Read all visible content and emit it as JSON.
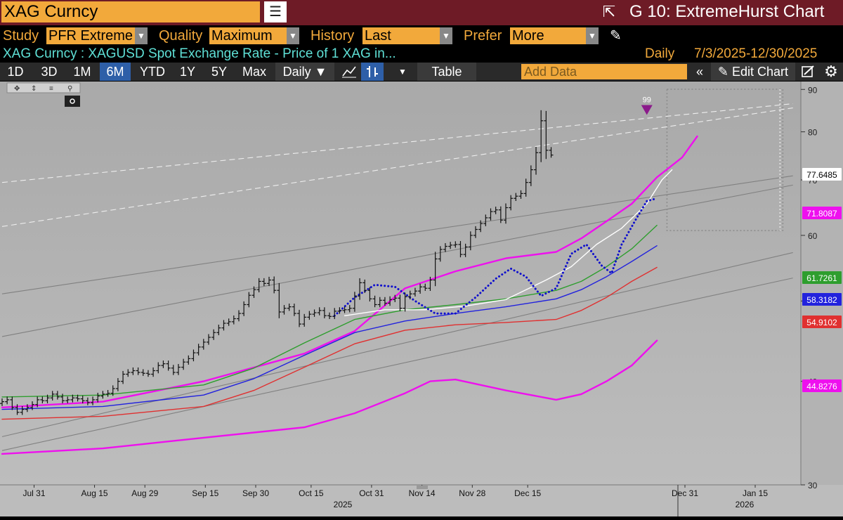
{
  "header": {
    "security": "XAG Curncy",
    "title": "G 10: ExtremeHurst Chart"
  },
  "controls": {
    "study_label": "Study",
    "study_value": "PFR Extreme",
    "quality_label": "Quality",
    "quality_value": "Maximum",
    "history_label": "History",
    "history_value": "Last",
    "prefer_label": "Prefer",
    "prefer_value": "More"
  },
  "info": {
    "description": "XAG Curncy : XAGUSD Spot Exchange Rate - Price of 1 XAG in...",
    "frequency": "Daily",
    "date_range": "7/3/2025-12/30/2025"
  },
  "toolbar": {
    "periods": [
      "1D",
      "3D",
      "1M",
      "6M",
      "YTD",
      "1Y",
      "5Y",
      "Max"
    ],
    "active_period": "6M",
    "daily_label": "Daily ▼",
    "table_label": "Table",
    "add_data_placeholder": "Add Data",
    "edit_chart_label": "Edit Chart"
  },
  "icons": {
    "menu": "menu-icon",
    "popout": "popout-icon",
    "pencil": "pencil-icon",
    "line_chart": "line-chart-icon",
    "bar_chart": "ohlc-bar-icon",
    "collapse": "double-chevron-left-icon",
    "settings": "gear-icon"
  },
  "colors": {
    "header_bg": "#6e1b26",
    "accent": "#f2a93b",
    "chart_bg": "#b3b3b3",
    "magenta": "#ee10ee",
    "green": "#2e9e2e",
    "blue": "#2222dd",
    "red": "#e03030",
    "white_line": "#ffffff",
    "dotted_blue": "#1010cc"
  },
  "chart_data": {
    "type": "ohlc",
    "scale": "log",
    "ylim": [
      30,
      92
    ],
    "y_ticks": [
      30,
      40,
      50,
      60,
      70,
      80,
      90
    ],
    "x_tick_labels": [
      "Jul 31",
      "Aug 15",
      "Aug 29",
      "Sep 15",
      "Sep 30",
      "Oct 15",
      "Oct 31",
      "Nov 14",
      "Nov 28",
      "Dec 15",
      "Dec 31",
      "Jan 15"
    ],
    "year_labels": [
      "2025",
      "2026"
    ],
    "marker": {
      "label": "99",
      "date": "Dec 29",
      "value": 84.5
    },
    "price_labels": [
      {
        "value": "77.6485",
        "color": "#ffffff"
      },
      {
        "value": "71.8087",
        "color": "#ee10ee"
      },
      {
        "value": "61.7261",
        "color": "#2e9e2e"
      },
      {
        "value": "58.3182",
        "color": "#2222dd"
      },
      {
        "value": "54.9102",
        "color": "#e03030"
      },
      {
        "value": "44.8276",
        "color": "#ee10ee"
      }
    ],
    "price_close": [
      37.8,
      38.0,
      37.2,
      36.7,
      37.0,
      37.2,
      37.5,
      38.0,
      37.9,
      38.2,
      38.6,
      38.3,
      37.9,
      38.0,
      38.2,
      38.1,
      37.9,
      37.7,
      38.0,
      38.4,
      38.6,
      38.7,
      39.2,
      40.0,
      40.8,
      41.0,
      41.2,
      41.0,
      40.9,
      40.8,
      41.2,
      41.8,
      42.0,
      41.5,
      41.0,
      41.6,
      42.2,
      42.6,
      43.3,
      44.0,
      44.6,
      45.2,
      45.8,
      46.4,
      47.0,
      47.2,
      47.6,
      48.3,
      49.5,
      50.8,
      51.6,
      52.8,
      52.5,
      53.0,
      51.5,
      48.5,
      49.0,
      49.2,
      48.3,
      46.9,
      47.8,
      48.2,
      48.4,
      48.7,
      48.0,
      47.9,
      48.6,
      48.7,
      48.8,
      49.0,
      50.7,
      52.6,
      51.5,
      50.3,
      49.5,
      50.1,
      49.7,
      50.2,
      50.4,
      49.0,
      50.6,
      51.0,
      51.4,
      52.0,
      51.8,
      53.0,
      56.2,
      57.7,
      58.2,
      58.4,
      58.5,
      56.9,
      58.1,
      60.0,
      61.0,
      62.0,
      63.0,
      64.1,
      64.4,
      62.6,
      64.8,
      66.5,
      66.9,
      67.4,
      69.5,
      72.0,
      75.5,
      82.5,
      76.0,
      75.0
    ],
    "ohlc_from_close": true,
    "series": [
      {
        "name": "",
        "color": "#ee10ee",
        "style": "solid",
        "points": [
          [
            0,
            37.2
          ],
          [
            20,
            37.8
          ],
          [
            40,
            40.0
          ],
          [
            60,
            43.2
          ],
          [
            70,
            46.0
          ],
          [
            80,
            51.8
          ],
          [
            90,
            54.3
          ],
          [
            100,
            56.3
          ],
          [
            110,
            57.3
          ],
          [
            115,
            59.5
          ],
          [
            120,
            62.4
          ],
          [
            125,
            65.5
          ],
          [
            130,
            70.5
          ],
          [
            135,
            74.5
          ],
          [
            138,
            79.0
          ]
        ]
      },
      {
        "name": "",
        "color": "#ee10ee",
        "style": "solid",
        "points": [
          [
            0,
            32.7
          ],
          [
            20,
            33.2
          ],
          [
            40,
            34.2
          ],
          [
            60,
            35.2
          ],
          [
            70,
            36.6
          ],
          [
            80,
            38.7
          ],
          [
            85,
            40.0
          ],
          [
            90,
            40.2
          ],
          [
            95,
            39.6
          ],
          [
            100,
            39.0
          ],
          [
            105,
            38.5
          ],
          [
            110,
            38.0
          ],
          [
            115,
            38.6
          ],
          [
            120,
            40.0
          ],
          [
            125,
            41.8
          ],
          [
            130,
            44.8
          ]
        ]
      },
      {
        "name": "",
        "color": "#2e9e2e",
        "style": "solid",
        "points": [
          [
            0,
            38.3
          ],
          [
            20,
            38.5
          ],
          [
            40,
            39.6
          ],
          [
            50,
            41.5
          ],
          [
            60,
            44.5
          ],
          [
            70,
            47.5
          ],
          [
            80,
            48.8
          ],
          [
            90,
            49.5
          ],
          [
            100,
            50.3
          ],
          [
            110,
            51.5
          ],
          [
            115,
            52.8
          ],
          [
            120,
            55.0
          ],
          [
            125,
            57.8
          ],
          [
            130,
            61.7
          ]
        ]
      },
      {
        "name": "",
        "color": "#2222dd",
        "style": "solid",
        "points": [
          [
            0,
            37.0
          ],
          [
            20,
            37.3
          ],
          [
            40,
            38.5
          ],
          [
            50,
            40.3
          ],
          [
            60,
            43.0
          ],
          [
            70,
            45.8
          ],
          [
            80,
            47.3
          ],
          [
            90,
            48.3
          ],
          [
            100,
            49.2
          ],
          [
            110,
            50.3
          ],
          [
            115,
            51.6
          ],
          [
            120,
            53.5
          ],
          [
            125,
            55.8
          ],
          [
            130,
            58.3
          ]
        ]
      },
      {
        "name": "",
        "color": "#e03030",
        "style": "solid",
        "points": [
          [
            0,
            36.0
          ],
          [
            20,
            36.3
          ],
          [
            40,
            37.3
          ],
          [
            50,
            39.0
          ],
          [
            60,
            41.6
          ],
          [
            70,
            44.4
          ],
          [
            80,
            46.1
          ],
          [
            90,
            46.8
          ],
          [
            100,
            47.1
          ],
          [
            110,
            47.5
          ],
          [
            115,
            48.7
          ],
          [
            120,
            50.5
          ],
          [
            125,
            52.8
          ],
          [
            130,
            54.9
          ]
        ]
      },
      {
        "name": "",
        "color": "#ffffff",
        "style": "solid",
        "points": [
          [
            68,
            48.0
          ],
          [
            76,
            48.8
          ],
          [
            84,
            48.8
          ],
          [
            92,
            49.3
          ],
          [
            100,
            50.2
          ],
          [
            108,
            53.0
          ],
          [
            113,
            55.0
          ],
          [
            118,
            58.5
          ],
          [
            123,
            61.2
          ],
          [
            128,
            65.5
          ],
          [
            131,
            70.0
          ],
          [
            133,
            72.0
          ]
        ]
      },
      {
        "name": "",
        "color": "#1010cc",
        "style": "dotted",
        "points": [
          [
            66,
            48.0
          ],
          [
            70,
            50.5
          ],
          [
            74,
            52.3
          ],
          [
            78,
            52.0
          ],
          [
            82,
            50.0
          ],
          [
            86,
            48.3
          ],
          [
            90,
            48.3
          ],
          [
            94,
            50.5
          ],
          [
            98,
            53.2
          ],
          [
            101,
            54.7
          ],
          [
            104,
            53.5
          ],
          [
            107,
            50.7
          ],
          [
            110,
            51.8
          ],
          [
            113,
            57.0
          ],
          [
            116,
            58.5
          ],
          [
            119,
            55.2
          ],
          [
            121,
            54.0
          ],
          [
            123,
            58.5
          ],
          [
            126,
            63.0
          ],
          [
            128,
            66.0
          ],
          [
            130,
            66.5
          ]
        ]
      }
    ],
    "trendlines": [
      {
        "style": "dashed",
        "color": "#eeeeee",
        "from": [
          0,
          69.5
        ],
        "to": [
          157,
          86.5
        ]
      },
      {
        "style": "dashed",
        "color": "#eeeeee",
        "from": [
          0,
          61.5
        ],
        "to": [
          157,
          85.5
        ]
      },
      {
        "style": "solid",
        "color": "#808080",
        "from": [
          0,
          51.0
        ],
        "to": [
          157,
          70.8
        ]
      },
      {
        "style": "solid",
        "color": "#808080",
        "from": [
          0,
          45.3
        ],
        "to": [
          157,
          69.0
        ]
      },
      {
        "style": "solid",
        "color": "#808080",
        "from": [
          0,
          34.3
        ],
        "to": [
          157,
          57.2
        ]
      },
      {
        "style": "solid",
        "color": "#808080",
        "from": [
          0,
          33.0
        ],
        "to": [
          157,
          53.3
        ]
      }
    ]
  }
}
